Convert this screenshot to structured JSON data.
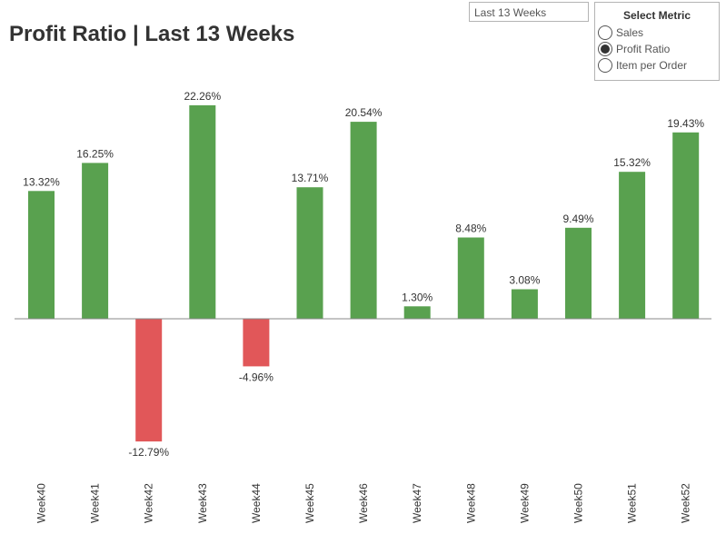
{
  "title": "Profit Ratio | Last 13 Weeks",
  "range_filter": {
    "value": "Last 13 Weeks"
  },
  "metric_selector": {
    "title": "Select Metric",
    "options": [
      {
        "label": "Sales",
        "selected": false
      },
      {
        "label": "Profit Ratio",
        "selected": true
      },
      {
        "label": "Item per Order",
        "selected": false
      }
    ]
  },
  "colors": {
    "positive": "#59a14f",
    "negative": "#e15759",
    "baseline": "#888888",
    "text": "#333333"
  },
  "chart_data": {
    "type": "bar",
    "title": "Profit Ratio | Last 13 Weeks",
    "xlabel": "",
    "ylabel": "",
    "categories": [
      "Week40",
      "Week41",
      "Week42",
      "Week43",
      "Week44",
      "Week45",
      "Week46",
      "Week47",
      "Week48",
      "Week49",
      "Week50",
      "Week51",
      "Week52"
    ],
    "values": [
      13.32,
      16.25,
      -12.79,
      22.26,
      -4.96,
      13.71,
      20.54,
      1.3,
      8.48,
      3.08,
      9.49,
      15.32,
      19.43
    ],
    "data_labels": [
      "13.32%",
      "16.25%",
      "-12.79%",
      "22.26%",
      "-4.96%",
      "13.71%",
      "20.54%",
      "1.30%",
      "8.48%",
      "3.08%",
      "9.49%",
      "15.32%",
      "19.43%"
    ],
    "unit": "%",
    "grid": false,
    "legend": "none"
  }
}
